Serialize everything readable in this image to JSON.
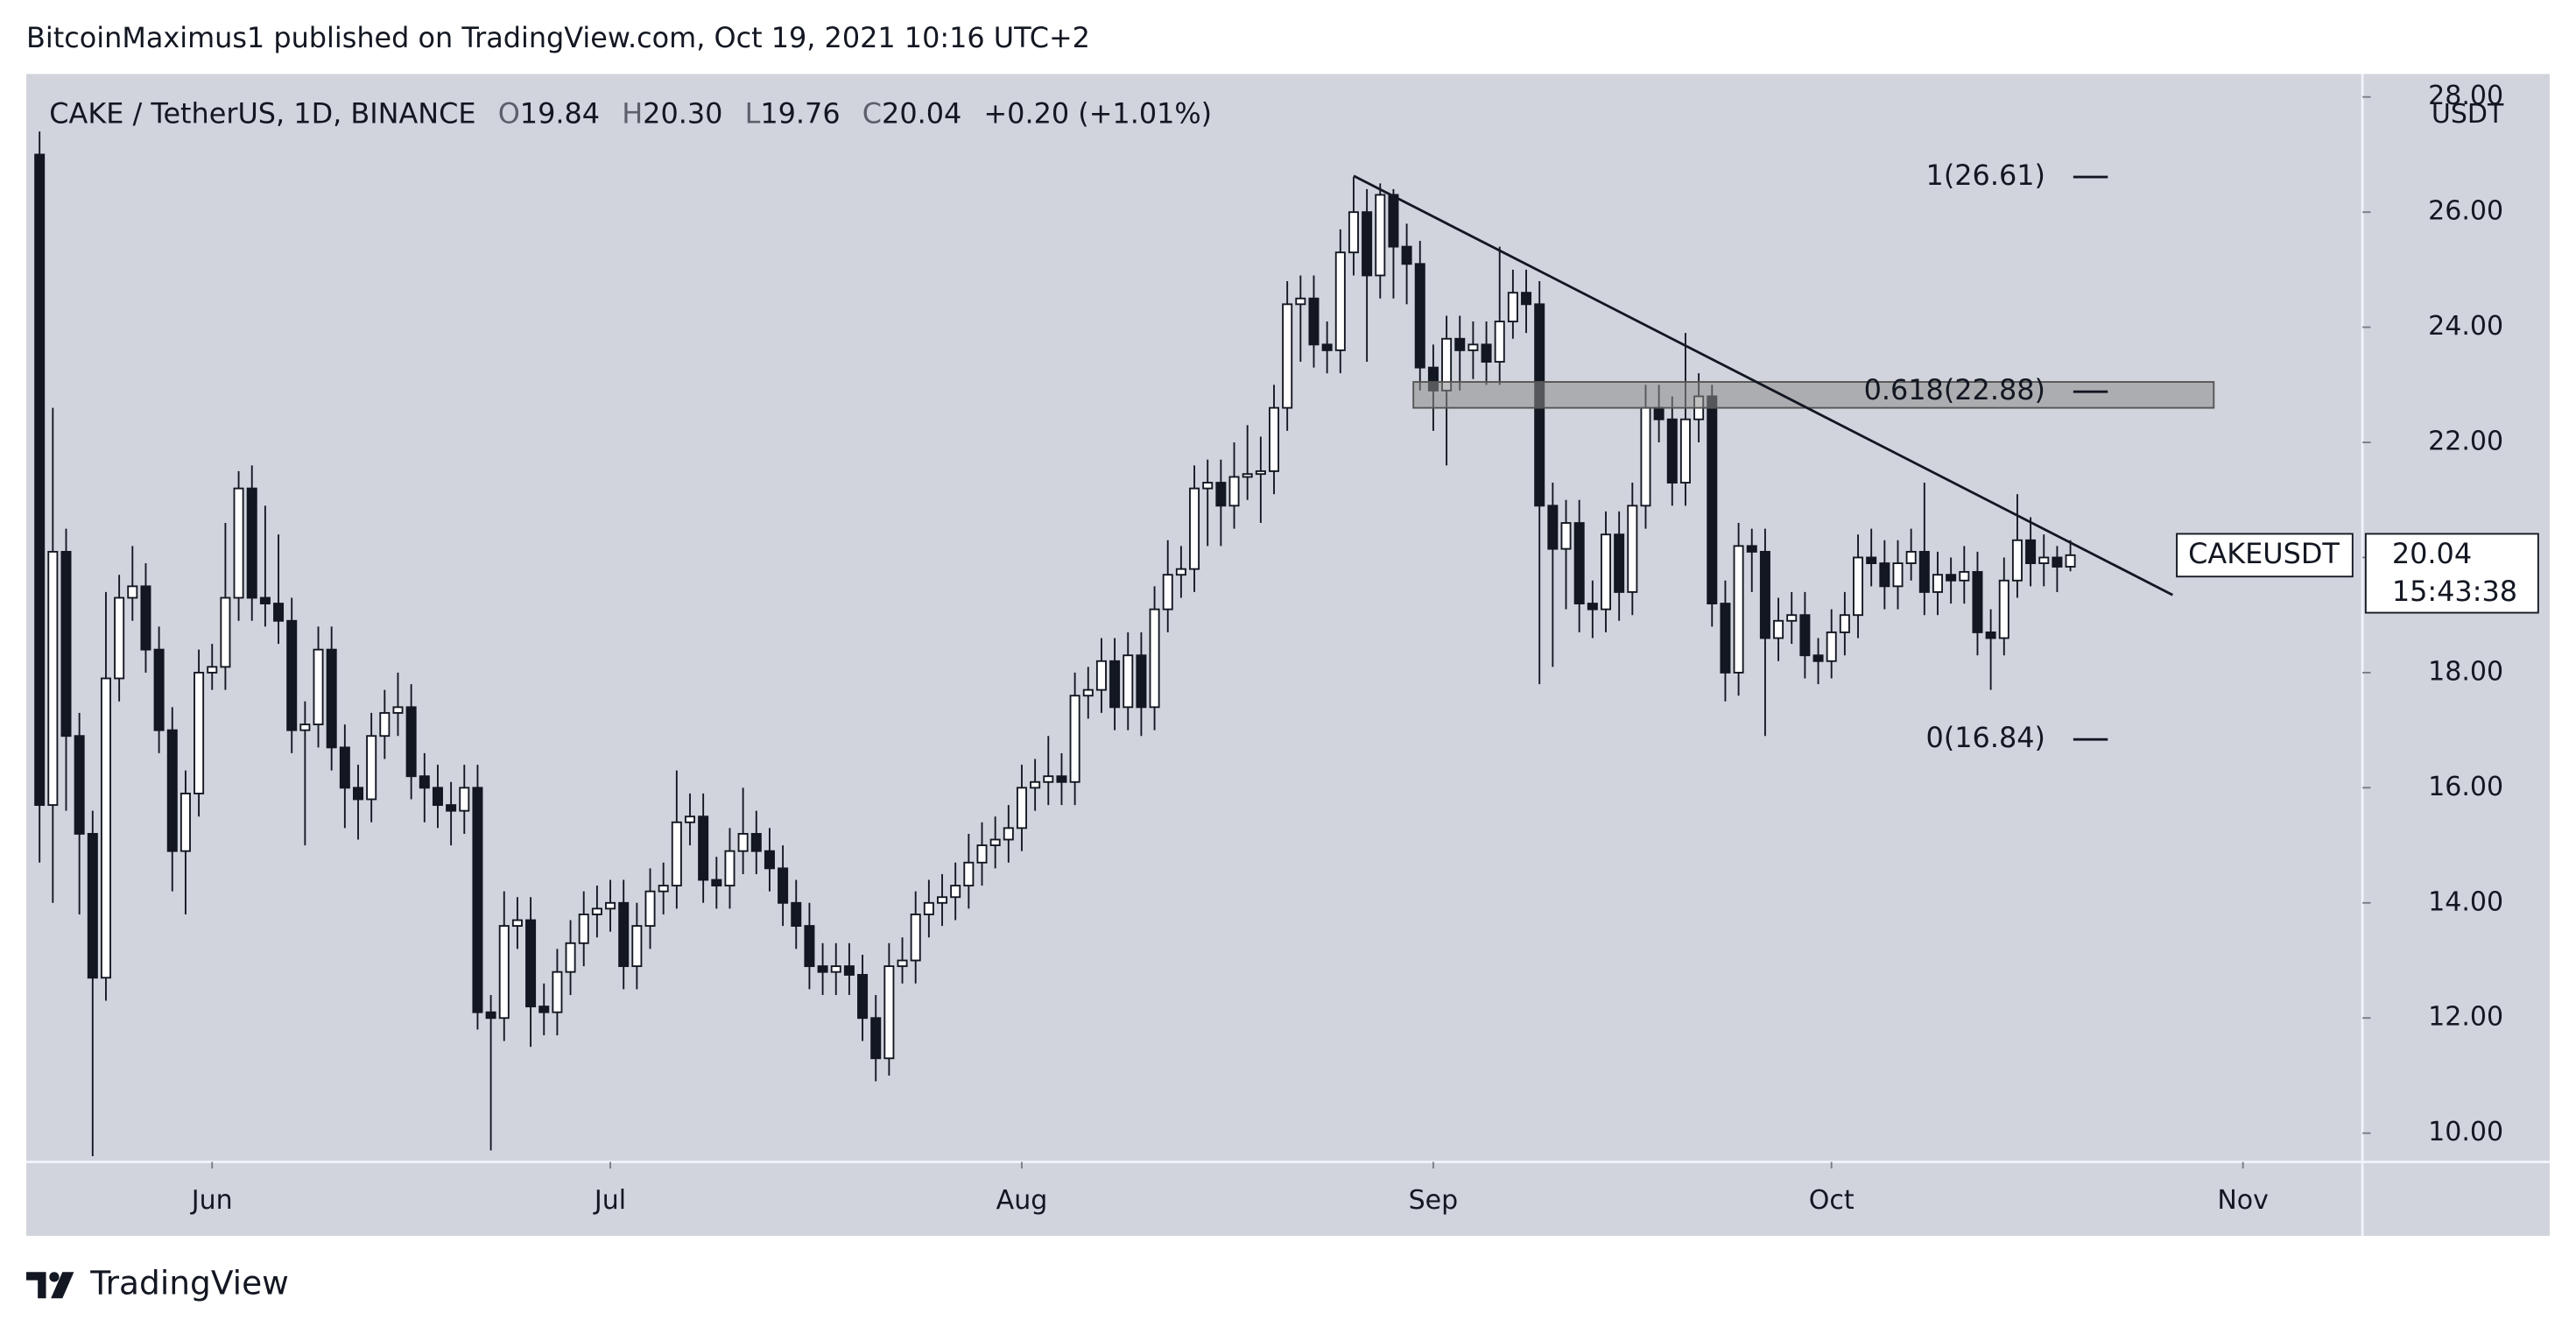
{
  "header": {
    "title": "BitcoinMaximus1 published on TradingView.com, Oct 19, 2021 10:16 UTC+2"
  },
  "chart_data": {
    "type": "candlestick",
    "title": "CAKE / TetherUS, 1D, BINANCE",
    "ohlc_legend": [
      {
        "key": "O",
        "value": "19.84"
      },
      {
        "key": "H",
        "value": "20.30"
      },
      {
        "key": "L",
        "value": "19.76"
      },
      {
        "key": "C",
        "value": "20.04"
      }
    ],
    "change": "+0.20 (+1.01%)",
    "y_axis_label": "USDT",
    "open": [
      27.0,
      15.7,
      20.1,
      16.9,
      15.2,
      12.7,
      17.9,
      19.3,
      19.5,
      18.4,
      17.0,
      14.9,
      15.9,
      18.0,
      18.1,
      19.3,
      21.2,
      19.3,
      19.2,
      18.9,
      17.0,
      17.1,
      18.4,
      16.7,
      16.0,
      15.8,
      16.9,
      17.3,
      17.4,
      16.2,
      16.0,
      15.7,
      15.6,
      16.0,
      12.1,
      12.0,
      13.6,
      13.7,
      12.2,
      12.1,
      12.8,
      13.3,
      13.8,
      13.9,
      14.0,
      12.9,
      13.6,
      14.2,
      14.3,
      15.4,
      15.5,
      14.4,
      14.3,
      14.9,
      15.2,
      14.9,
      14.6,
      14.0,
      13.6,
      12.9,
      12.8,
      12.9,
      12.75,
      12.0,
      11.3,
      12.9,
      13.0,
      13.8,
      14.0,
      14.1,
      14.3,
      14.7,
      15.0,
      15.1,
      15.3,
      16.0,
      16.1,
      16.2,
      16.1,
      17.6,
      17.7,
      18.2,
      17.4,
      18.3,
      17.4,
      19.1,
      19.7,
      19.8,
      21.2,
      21.3,
      20.9,
      21.4,
      21.45,
      21.5,
      22.6,
      24.4,
      24.5,
      23.7,
      23.6,
      25.3,
      26.0,
      24.9,
      26.3,
      25.4,
      25.1,
      23.3,
      22.9,
      23.8,
      23.6,
      23.7,
      23.4,
      24.1,
      24.6,
      24.4,
      20.9,
      20.15,
      20.6,
      19.2,
      19.1,
      20.4,
      19.4,
      20.9,
      22.6,
      22.4,
      21.3,
      22.4,
      22.8,
      19.2,
      18.0,
      20.2,
      20.1,
      18.6,
      18.9,
      19.0,
      18.3,
      18.2,
      18.7,
      19.0,
      20.0,
      19.9,
      19.5,
      19.9,
      20.1,
      19.4,
      19.7,
      19.6,
      19.75,
      18.7,
      18.6,
      19.6,
      20.3,
      19.9,
      20.0,
      19.84
    ],
    "high": [
      27.4,
      22.6,
      20.5,
      17.3,
      15.6,
      19.4,
      19.7,
      20.2,
      19.9,
      18.8,
      17.4,
      16.3,
      18.4,
      18.5,
      20.6,
      21.5,
      21.6,
      20.9,
      20.4,
      19.3,
      17.5,
      18.8,
      18.8,
      17.1,
      16.4,
      17.3,
      17.7,
      18.0,
      17.8,
      16.6,
      16.4,
      16.1,
      16.4,
      16.4,
      12.4,
      14.2,
      14.1,
      14.1,
      12.6,
      13.2,
      13.7,
      14.2,
      14.3,
      14.4,
      14.4,
      14.0,
      14.6,
      14.7,
      16.3,
      15.9,
      15.9,
      14.8,
      15.3,
      16.0,
      15.6,
      15.3,
      15.0,
      14.4,
      14.0,
      13.3,
      13.3,
      13.3,
      13.1,
      12.4,
      13.3,
      13.4,
      14.2,
      14.4,
      14.5,
      14.7,
      15.2,
      15.4,
      15.5,
      15.7,
      16.4,
      16.5,
      16.9,
      16.6,
      18.0,
      18.1,
      18.6,
      18.6,
      18.7,
      18.7,
      19.5,
      20.3,
      20.2,
      21.6,
      21.7,
      21.7,
      22.0,
      22.3,
      22.1,
      23.0,
      24.8,
      24.9,
      24.9,
      24.1,
      25.7,
      26.61,
      26.4,
      26.5,
      26.4,
      25.8,
      25.5,
      23.7,
      24.2,
      24.2,
      24.1,
      24.1,
      25.4,
      25.0,
      25.0,
      24.8,
      21.3,
      21.0,
      21.0,
      19.6,
      20.8,
      20.8,
      21.3,
      23.0,
      23.0,
      22.8,
      23.9,
      23.2,
      23.0,
      19.6,
      20.6,
      20.5,
      20.5,
      19.3,
      19.4,
      19.4,
      18.6,
      19.1,
      19.4,
      20.4,
      20.5,
      20.3,
      20.3,
      20.5,
      21.3,
      20.1,
      20.0,
      20.2,
      20.1,
      19.1,
      20.0,
      21.1,
      20.7,
      20.4,
      20.2,
      20.3
    ],
    "low": [
      14.7,
      14.0,
      15.6,
      13.8,
      9.6,
      12.3,
      17.5,
      18.9,
      18.0,
      16.6,
      14.2,
      13.8,
      15.5,
      17.7,
      17.7,
      18.9,
      18.9,
      18.8,
      18.5,
      16.6,
      15.0,
      16.7,
      16.3,
      15.3,
      15.1,
      15.4,
      16.5,
      16.9,
      15.8,
      15.4,
      15.3,
      15.0,
      15.2,
      11.8,
      9.7,
      11.6,
      13.2,
      11.5,
      11.7,
      11.7,
      12.4,
      12.9,
      13.4,
      13.5,
      12.5,
      12.5,
      13.2,
      13.8,
      13.9,
      15.0,
      14.0,
      13.9,
      13.9,
      14.5,
      14.5,
      14.2,
      13.6,
      13.2,
      12.5,
      12.4,
      12.4,
      12.4,
      11.6,
      10.9,
      11.0,
      12.6,
      12.6,
      13.4,
      13.6,
      13.7,
      13.9,
      14.3,
      14.6,
      14.7,
      14.9,
      15.6,
      15.7,
      15.7,
      15.7,
      17.2,
      17.3,
      17.0,
      17.0,
      16.9,
      17.0,
      18.7,
      19.3,
      19.4,
      20.2,
      20.2,
      20.5,
      21.0,
      20.6,
      21.1,
      22.2,
      23.4,
      23.3,
      23.2,
      23.2,
      24.9,
      23.4,
      24.5,
      24.5,
      24.4,
      22.9,
      22.2,
      21.6,
      22.9,
      23.1,
      23.0,
      23.0,
      23.8,
      23.9,
      17.8,
      18.1,
      19.1,
      18.7,
      18.6,
      18.7,
      18.9,
      19.0,
      20.5,
      22.0,
      20.9,
      20.9,
      22.0,
      18.8,
      17.5,
      17.6,
      19.4,
      16.9,
      18.2,
      18.5,
      17.9,
      17.8,
      17.9,
      18.3,
      18.6,
      19.5,
      19.1,
      19.1,
      19.6,
      19.0,
      19.0,
      19.2,
      19.2,
      18.3,
      17.7,
      18.3,
      19.3,
      19.5,
      19.5,
      19.4,
      19.76
    ],
    "close": [
      15.7,
      20.1,
      16.9,
      15.2,
      12.7,
      17.9,
      19.3,
      19.5,
      18.4,
      17.0,
      14.9,
      15.9,
      18.0,
      18.1,
      19.3,
      21.2,
      19.3,
      19.2,
      18.9,
      17.0,
      17.1,
      18.4,
      16.7,
      16.0,
      15.8,
      16.9,
      17.3,
      17.4,
      16.2,
      16.0,
      15.7,
      15.6,
      16.0,
      12.1,
      12.0,
      13.6,
      13.7,
      12.2,
      12.1,
      12.8,
      13.3,
      13.8,
      13.9,
      14.0,
      12.9,
      13.6,
      14.2,
      14.3,
      15.4,
      15.5,
      14.4,
      14.3,
      14.9,
      15.2,
      14.9,
      14.6,
      14.0,
      13.6,
      12.9,
      12.8,
      12.9,
      12.75,
      12.0,
      11.3,
      12.9,
      13.0,
      13.8,
      14.0,
      14.1,
      14.3,
      14.7,
      15.0,
      15.1,
      15.3,
      16.0,
      16.1,
      16.2,
      16.1,
      17.6,
      17.7,
      18.2,
      17.4,
      18.3,
      17.4,
      19.1,
      19.7,
      19.8,
      21.2,
      21.3,
      20.9,
      21.4,
      21.45,
      21.5,
      22.6,
      24.4,
      24.5,
      23.7,
      23.6,
      25.3,
      26.0,
      24.9,
      26.3,
      25.4,
      25.1,
      23.3,
      22.9,
      23.8,
      23.6,
      23.7,
      23.4,
      24.1,
      24.6,
      24.4,
      20.9,
      20.15,
      20.6,
      19.2,
      19.1,
      20.4,
      19.4,
      20.9,
      22.6,
      22.4,
      21.3,
      22.4,
      22.8,
      19.2,
      18.0,
      20.2,
      20.1,
      18.6,
      18.9,
      19.0,
      18.3,
      18.2,
      18.7,
      19.0,
      20.0,
      19.9,
      19.5,
      19.9,
      20.1,
      19.4,
      19.7,
      19.6,
      19.75,
      18.7,
      18.6,
      19.6,
      20.3,
      19.9,
      20.0,
      19.84,
      20.04
    ],
    "up_color": "#ffffff",
    "down_color": "#131722",
    "xlim": [
      -1,
      175
    ],
    "xticks": [
      {
        "value": 13,
        "label": "Jun"
      },
      {
        "value": 43,
        "label": "Jul"
      },
      {
        "value": 74,
        "label": "Aug"
      },
      {
        "value": 105,
        "label": "Sep"
      },
      {
        "value": 135,
        "label": "Oct"
      },
      {
        "value": 166,
        "label": "Nov"
      }
    ],
    "ylim": [
      9.5,
      28.4
    ],
    "yticks": [
      {
        "value": 10,
        "label": "10.00"
      },
      {
        "value": 12,
        "label": "12.00"
      },
      {
        "value": 14,
        "label": "14.00"
      },
      {
        "value": 16,
        "label": "16.00"
      },
      {
        "value": 18,
        "label": "18.00"
      },
      {
        "value": 20,
        "label": "20.00"
      },
      {
        "value": 22,
        "label": "22.00"
      },
      {
        "value": 24,
        "label": "24.00"
      },
      {
        "value": 26,
        "label": "26.00"
      },
      {
        "value": 28,
        "label": "28.00"
      }
    ],
    "zone": {
      "x": [
        103.5,
        163.8
      ],
      "y": [
        22.6,
        23.05
      ],
      "color": "#8c8c8c"
    },
    "trendline": {
      "x": [
        99,
        160.7
      ],
      "y": [
        26.63,
        19.35
      ]
    },
    "fib_levels": [
      {
        "label": "1(26.61)",
        "value": 26.61
      },
      {
        "label": "0.618(22.88)",
        "value": 22.88
      },
      {
        "label": "0(16.84)",
        "value": 16.84
      }
    ],
    "symbol_tag": "CAKEUSDT",
    "price_tag": "20.04",
    "countdown": "15:43:38"
  },
  "footer": {
    "brand": "TradingView"
  }
}
